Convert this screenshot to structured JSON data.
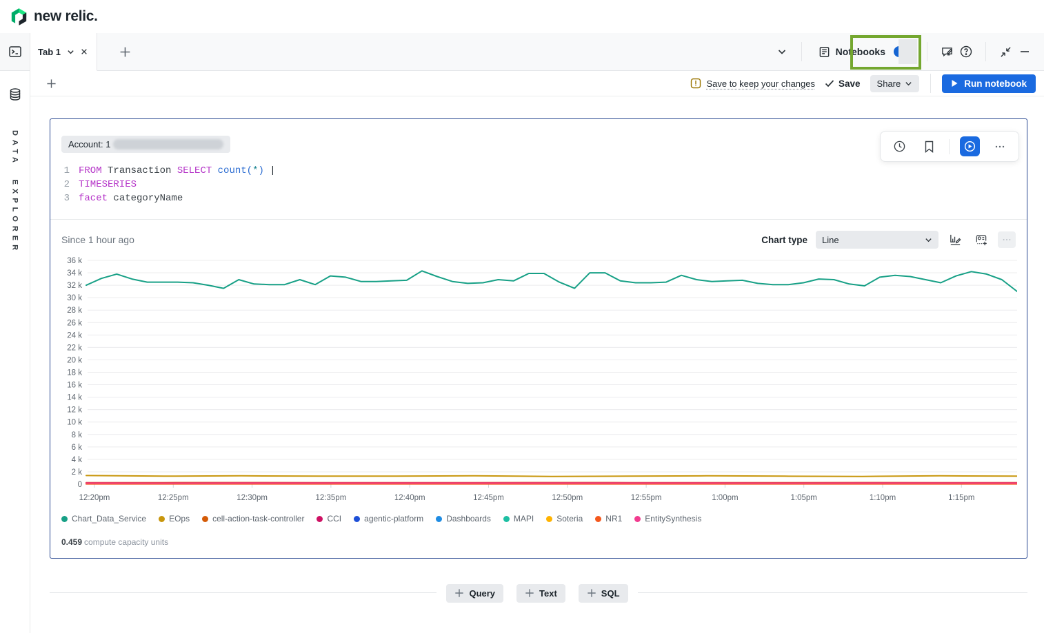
{
  "header": {
    "brand": "new relic."
  },
  "tab_bar": {
    "tab_label": "Tab 1",
    "notebooks_label": "Notebooks"
  },
  "notebook_toolbar": {
    "warning_text": "Save to keep your changes",
    "save_label": "Save",
    "share_label": "Share",
    "run_label": "Run notebook"
  },
  "sidebar": {
    "explorer_label": "DATA EXPLORER"
  },
  "cell": {
    "account_prefix": "Account: 1",
    "query": {
      "lines": [
        {
          "num": "1",
          "tokens": [
            {
              "t": "FROM ",
              "c": "kw"
            },
            {
              "t": "Transaction ",
              "c": "id"
            },
            {
              "t": "SELECT ",
              "c": "kw"
            },
            {
              "t": "count",
              "c": "fn"
            },
            {
              "t": "(",
              "c": "fn"
            },
            {
              "t": "*",
              "c": "star"
            },
            {
              "t": ")",
              "c": "fn"
            },
            {
              "t": " ",
              "c": "id"
            },
            {
              "t": "|",
              "c": "cursor"
            }
          ]
        },
        {
          "num": "2",
          "tokens": [
            {
              "t": "TIMESERIES",
              "c": "kw"
            }
          ]
        },
        {
          "num": "3",
          "tokens": [
            {
              "t": "facet ",
              "c": "kw"
            },
            {
              "t": "categoryName",
              "c": "id"
            }
          ]
        }
      ]
    },
    "since_label": "Since 1 hour ago",
    "chart_type_label": "Chart type",
    "chart_type_value": "Line",
    "cost_value": "0.459",
    "cost_label": "compute capacity units"
  },
  "add_row": {
    "buttons": [
      "Query",
      "Text",
      "SQL"
    ]
  },
  "chart_data": {
    "type": "line",
    "title": "Since 1 hour ago",
    "xlabel": "",
    "ylabel": "",
    "ylim": [
      0,
      36000
    ],
    "grid": true,
    "legend_position": "bottom",
    "y_ticks": [
      "36 k",
      "34 k",
      "32 k",
      "30 k",
      "28 k",
      "26 k",
      "24 k",
      "22 k",
      "20 k",
      "18 k",
      "16 k",
      "14 k",
      "12 k",
      "10 k",
      "8 k",
      "6 k",
      "4 k",
      "2 k",
      "0"
    ],
    "x_ticks": [
      "12:20pm",
      "12:25pm",
      "12:30pm",
      "12:35pm",
      "12:40pm",
      "12:45pm",
      "12:50pm",
      "12:55pm",
      "1:00pm",
      "1:05pm",
      "1:10pm",
      "1:15pm"
    ],
    "series": [
      {
        "name": "Chart_Data_Service",
        "color": "#17a086",
        "values": [
          32000,
          33100,
          33800,
          33000,
          32500,
          32500,
          32500,
          32400,
          32000,
          31500,
          32900,
          32200,
          32100,
          32100,
          32900,
          32100,
          33500,
          33300,
          32600,
          32600,
          32700,
          32800,
          34300,
          33400,
          32600,
          32300,
          32400,
          32900,
          32700,
          33900,
          33900,
          32500,
          31500,
          34000,
          34000,
          32700,
          32400,
          32400,
          32500,
          33600,
          32900,
          32600,
          32700,
          32800,
          32300,
          32100,
          32100,
          32400,
          33000,
          32900,
          32200,
          31900,
          33300,
          33600,
          33400,
          32900,
          32400,
          33500,
          34200,
          33800,
          32900,
          31000
        ]
      },
      {
        "name": "EOps",
        "color": "#c8960c",
        "values": [
          1400,
          1300,
          1350,
          1300,
          1300,
          1350,
          1250,
          1300,
          1350,
          1300,
          1250,
          1350,
          1300
        ]
      },
      {
        "name": "cell-action-task-controller",
        "color": "#d45b07",
        "values": [
          260,
          255,
          262,
          258,
          260,
          255,
          261,
          258,
          260,
          256,
          262,
          258,
          260
        ]
      },
      {
        "name": "CCI",
        "color": "#ce1163",
        "values": [
          150,
          148,
          152,
          150,
          149,
          151,
          150,
          148,
          152,
          150,
          149,
          151,
          150
        ]
      },
      {
        "name": "agentic-platform",
        "color": "#1d4fd7",
        "values": [
          60,
          60,
          60,
          60,
          60,
          60,
          60,
          60,
          60,
          60,
          60,
          60,
          60
        ]
      },
      {
        "name": "Dashboards",
        "color": "#1f8ce3",
        "values": [
          90,
          90,
          90,
          90,
          90,
          90,
          90,
          90,
          90,
          90,
          90,
          90,
          90
        ]
      },
      {
        "name": "MAPI",
        "color": "#1dbfa3",
        "values": [
          120,
          120,
          120,
          120,
          120,
          120,
          120,
          120,
          120,
          120,
          120,
          120,
          120
        ]
      },
      {
        "name": "Soteria",
        "color": "#ffb300",
        "values": [
          75,
          75,
          75,
          75,
          75,
          75,
          75,
          75,
          75,
          75,
          75,
          75,
          75
        ]
      },
      {
        "name": "NR1",
        "color": "#f4581d",
        "values": [
          45,
          45,
          45,
          45,
          45,
          45,
          45,
          45,
          45,
          45,
          45,
          45,
          45
        ]
      },
      {
        "name": "EntitySynthesis",
        "color": "#f23b8f",
        "values": [
          185,
          182,
          188,
          184,
          186,
          183,
          187,
          184,
          186,
          182,
          188,
          184,
          186
        ]
      }
    ]
  }
}
